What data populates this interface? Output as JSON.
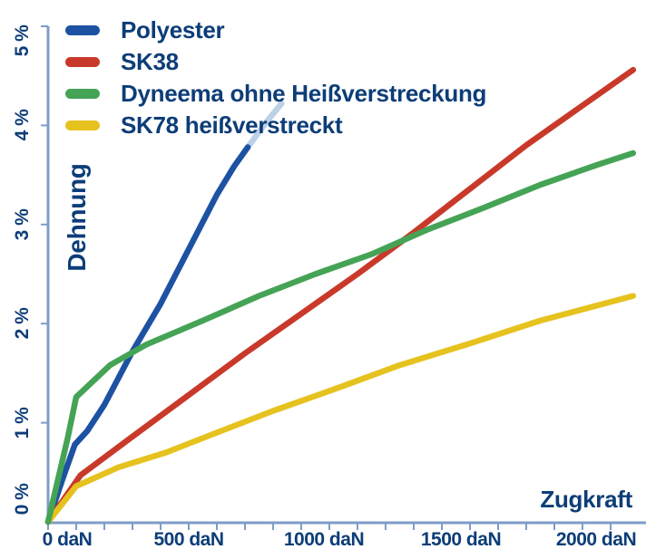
{
  "colors": {
    "text_navy": "#0d3d78",
    "axis": "#7e9dc6",
    "background": "#ffffff",
    "polyester_blue": "#1d52a3",
    "polyester_faded_blue": "#bcd0e6",
    "sk38_red": "#c9392a",
    "dyneema_green": "#45a356",
    "sk78_yellow": "#e6c21f"
  },
  "chart_data": {
    "type": "line",
    "title": "",
    "xlabel": "Zugkraft",
    "ylabel": "Dehnung",
    "x_unit": "daN",
    "y_unit": "%",
    "xlim": [
      0,
      2125
    ],
    "ylim": [
      0,
      5
    ],
    "grid": false,
    "legend_position": "top-left",
    "x_minor_tick_step_daN": 100,
    "x_minor_tick_max_daN": 2000,
    "y_tick_pcts": [
      1,
      2,
      3,
      4,
      5
    ],
    "x_tick_labels": [
      {
        "daN": 0,
        "label": "0 daN",
        "dx": 21
      },
      {
        "daN": 500,
        "label": "500 daN",
        "dx": 0
      },
      {
        "daN": 1000,
        "label": "1000 daN",
        "dx": -6
      },
      {
        "daN": 1500,
        "label": "1500 daN",
        "dx": -10
      },
      {
        "daN": 2000,
        "label": "2000 daN",
        "dx": -16
      }
    ],
    "y_tick_labels": [
      {
        "pct": 0,
        "label": "0 %"
      },
      {
        "pct": 1,
        "label": "1 %"
      },
      {
        "pct": 2,
        "label": "2 %"
      },
      {
        "pct": 3,
        "label": "3 %"
      },
      {
        "pct": 4,
        "label": "4 %"
      },
      {
        "pct": 5,
        "label": "5 %"
      }
    ],
    "series": [
      {
        "name": "Polyester",
        "color_key": "polyester_blue",
        "points": [
          [
            0,
            0
          ],
          [
            50,
            0.42
          ],
          [
            95,
            0.78
          ],
          [
            140,
            0.92
          ],
          [
            200,
            1.18
          ],
          [
            300,
            1.72
          ],
          [
            400,
            2.2
          ],
          [
            500,
            2.75
          ],
          [
            600,
            3.3
          ],
          [
            660,
            3.58
          ],
          [
            710,
            3.78
          ]
        ],
        "extension": {
          "color_key": "polyester_faded_blue",
          "points": [
            [
              710,
              3.78
            ],
            [
              775,
              4.03
            ],
            [
              830,
              4.22
            ]
          ]
        }
      },
      {
        "name": "SK38",
        "color_key": "sk38_red",
        "points": [
          [
            0,
            0
          ],
          [
            115,
            0.47
          ],
          [
            300,
            0.86
          ],
          [
            500,
            1.28
          ],
          [
            700,
            1.7
          ],
          [
            900,
            2.1
          ],
          [
            1100,
            2.5
          ],
          [
            1300,
            2.92
          ],
          [
            1500,
            3.36
          ],
          [
            1700,
            3.8
          ],
          [
            1900,
            4.2
          ],
          [
            2080,
            4.56
          ]
        ]
      },
      {
        "name": "Dyneema ohne Heißverstreckung",
        "color_key": "dyneema_green",
        "points": [
          [
            0,
            0
          ],
          [
            70,
            0.85
          ],
          [
            100,
            1.26
          ],
          [
            220,
            1.58
          ],
          [
            350,
            1.79
          ],
          [
            550,
            2.03
          ],
          [
            750,
            2.28
          ],
          [
            950,
            2.5
          ],
          [
            1150,
            2.7
          ],
          [
            1350,
            2.95
          ],
          [
            1550,
            3.17
          ],
          [
            1750,
            3.4
          ],
          [
            1950,
            3.6
          ],
          [
            2080,
            3.72
          ]
        ]
      },
      {
        "name": "SK78 heißverstreckt",
        "color_key": "sk78_yellow",
        "points": [
          [
            0,
            0
          ],
          [
            100,
            0.36
          ],
          [
            250,
            0.55
          ],
          [
            420,
            0.7
          ],
          [
            600,
            0.9
          ],
          [
            800,
            1.12
          ],
          [
            1000,
            1.32
          ],
          [
            1250,
            1.58
          ],
          [
            1500,
            1.8
          ],
          [
            1750,
            2.03
          ],
          [
            2080,
            2.28
          ]
        ]
      }
    ],
    "draw_order": [
      0,
      1,
      3,
      2
    ],
    "legend_rows_top": [
      20,
      55,
      90,
      125
    ]
  }
}
